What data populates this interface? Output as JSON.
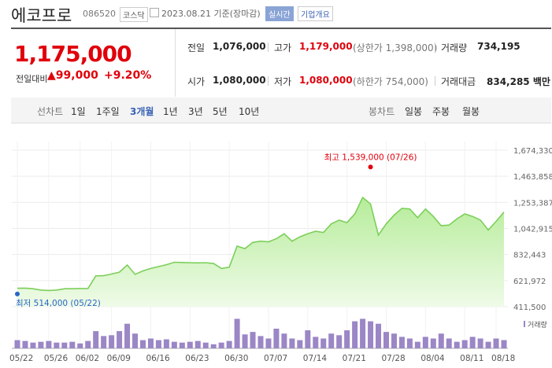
{
  "header": {
    "name": "에코프로",
    "code": "086520",
    "market": "코스닥",
    "date": "2023.08.21 기준(장마감)",
    "realtime": "실시간",
    "overview": "기업개요"
  },
  "quote": {
    "price": "1,175,000",
    "change_label": "전일대비",
    "change": "99,000",
    "change_rate": "+9.20%",
    "stats": [
      [
        {
          "label": "전일",
          "value": "1,076,000"
        },
        {
          "label": "고가",
          "value": "1,179,000",
          "extra": "(상한가 1,398,000)"
        },
        {
          "label": "거래량",
          "value": "734,195"
        }
      ],
      [
        {
          "label": "시가",
          "value": "1,080,000"
        },
        {
          "label": "저가",
          "value": "1,080,000",
          "extra": "(하한가 754,000)"
        },
        {
          "label": "거래대금",
          "value": "834,285 백만"
        }
      ]
    ]
  },
  "tabs": {
    "line_label": "선차트",
    "line": [
      "1일",
      "1주일",
      "3개월",
      "1년",
      "3년",
      "5년",
      "10년"
    ],
    "selected": "3개월",
    "candle_label": "봉차트",
    "candle": [
      "일봉",
      "주봉",
      "월봉"
    ]
  },
  "chart_data": {
    "type": "area",
    "color": "#7ccf5a",
    "volume_color": "#9b86c6",
    "grid": true,
    "categories": [
      "05/22",
      "05/23",
      "05/24",
      "05/25",
      "05/26",
      "05/30",
      "05/31",
      "06/01",
      "06/02",
      "06/05",
      "06/07",
      "06/08",
      "06/09",
      "06/12",
      "06/13",
      "06/14",
      "06/15",
      "06/16",
      "06/19",
      "06/20",
      "06/21",
      "06/22",
      "06/23",
      "06/26",
      "06/27",
      "06/28",
      "06/29",
      "06/30",
      "07/03",
      "07/04",
      "07/05",
      "07/06",
      "07/07",
      "07/10",
      "07/11",
      "07/12",
      "07/13",
      "07/14",
      "07/17",
      "07/18",
      "07/19",
      "07/20",
      "07/21",
      "07/24",
      "07/25",
      "07/26",
      "07/27",
      "07/28",
      "07/31",
      "08/01",
      "08/02",
      "08/03",
      "08/04",
      "08/07",
      "08/08",
      "08/09",
      "08/10",
      "08/11",
      "08/14",
      "08/16",
      "08/17",
      "08/18",
      "08/21"
    ],
    "xticks": [
      "05/22",
      "05/26",
      "06/02",
      "06/09",
      "06/16",
      "06/23",
      "06/30",
      "07/07",
      "07/14",
      "07/21",
      "07/28",
      "08/04",
      "08/11",
      "08/18"
    ],
    "values": [
      560000,
      561000,
      556000,
      545000,
      542000,
      545000,
      556000,
      556000,
      558000,
      558000,
      660000,
      662000,
      675000,
      690000,
      748000,
      672000,
      700000,
      720000,
      735000,
      750000,
      770000,
      768000,
      766000,
      765000,
      766000,
      760000,
      720000,
      730000,
      900000,
      880000,
      930000,
      940000,
      935000,
      960000,
      1000000,
      940000,
      975000,
      1000000,
      1020000,
      1010000,
      1080000,
      1110000,
      1090000,
      1160000,
      1293000,
      1240000,
      989000,
      1080000,
      1150000,
      1205000,
      1200000,
      1130000,
      1200000,
      1140000,
      1065000,
      1070000,
      1120000,
      1160000,
      1140000,
      1110000,
      1030000,
      1100000,
      1175000
    ],
    "volume_name": "거래량",
    "volume": [
      730000,
      657000,
      511000,
      584000,
      657000,
      511000,
      511000,
      584000,
      438000,
      657000,
      1533000,
      1095000,
      1168000,
      1533000,
      2190000,
      1314000,
      730000,
      876000,
      730000,
      803000,
      584000,
      511000,
      584000,
      657000,
      511000,
      365000,
      511000,
      657000,
      2628000,
      1241000,
      1460000,
      1095000,
      876000,
      1752000,
      1314000,
      876000,
      730000,
      1606000,
      1022000,
      876000,
      1314000,
      1168000,
      1606000,
      2409000,
      2628000,
      2409000,
      2190000,
      1460000,
      1314000,
      1022000,
      876000,
      584000,
      1022000,
      876000,
      1314000,
      876000,
      584000,
      730000,
      1022000,
      876000,
      584000,
      876000,
      734195
    ],
    "volume_ylim": [
      0,
      2800000
    ],
    "ylim": [
      411500,
      1674330
    ],
    "yticks": [
      {
        "value": 411500,
        "label": "411,500"
      },
      {
        "value": 621972,
        "label": "621,972"
      },
      {
        "value": 832443,
        "label": "832,443"
      },
      {
        "value": 1042915,
        "label": "1,042,915"
      },
      {
        "value": 1253387,
        "label": "1,253,387"
      },
      {
        "value": 1463858,
        "label": "1,463,858"
      },
      {
        "value": 1674330,
        "label": "1,674,330"
      }
    ],
    "high": {
      "text": "최고 1,539,000 (07/26)",
      "value": 1539000,
      "date": "07/26"
    },
    "low": {
      "text": "최저 514,000 (05/22)",
      "value": 514000,
      "date": "05/22"
    }
  }
}
